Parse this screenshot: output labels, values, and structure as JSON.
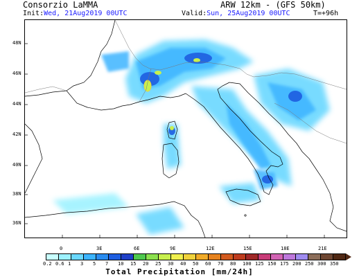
{
  "header": {
    "org": "Consorzio LaMMA",
    "model": "ARW 12km - (GFS 50km)",
    "init_label": "Init:",
    "init_value": "Wed, 21Aug2019 00UTC",
    "valid_label": "Valid:",
    "valid_value": "Sun, 25Aug2019 00UTC",
    "step": "T=+96h"
  },
  "map": {
    "lat_labels": [
      "48N",
      "46N",
      "44N",
      "42N",
      "40N",
      "38N",
      "36N"
    ],
    "lon_labels": [
      "0",
      "3E",
      "6E",
      "9E",
      "12E",
      "15E",
      "18E",
      "21E"
    ]
  },
  "legend": {
    "title": "Total Precipitation [mm/24h]",
    "labels": [
      "0.2",
      "0.6",
      "1",
      "3",
      "5",
      "7",
      "10",
      "15",
      "20",
      "25",
      "30",
      "40",
      "50",
      "60",
      "70",
      "80",
      "100",
      "125",
      "150",
      "175",
      "200",
      "250",
      "300",
      "350"
    ],
    "colors": [
      "#c8ffff",
      "#9ef2ff",
      "#6ad8ff",
      "#3cb4ff",
      "#2a8cf0",
      "#1e5ee0",
      "#2040c8",
      "#4ec84e",
      "#8ce04e",
      "#c8f04e",
      "#f0f04e",
      "#f0d23c",
      "#f0aa28",
      "#e6821e",
      "#d25a1e",
      "#be3c1e",
      "#a02828",
      "#c83c78",
      "#d264b4",
      "#be78dc",
      "#a08cf0",
      "#8c6e5a",
      "#6e4632",
      "#502814"
    ]
  },
  "colors": {
    "precip_light": "#6ad8ff",
    "precip_mid": "#3cb4ff",
    "precip_heavy": "#1e5ee0",
    "precip_max": "#f0f04e"
  }
}
